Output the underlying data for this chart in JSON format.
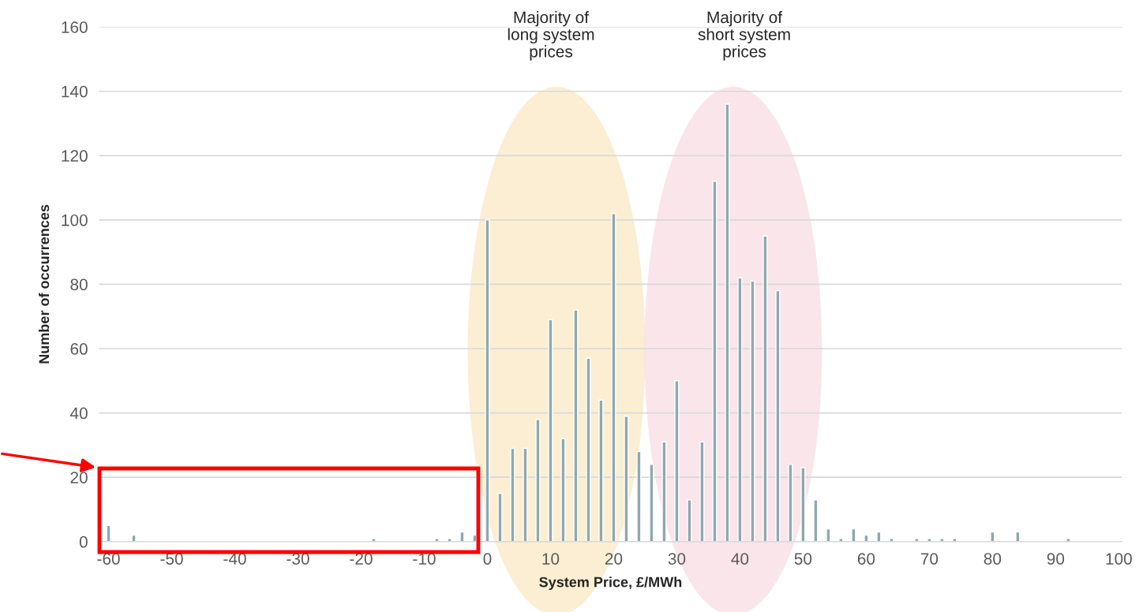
{
  "chart_data": {
    "type": "bar",
    "xlabel": "System Price, £/MWh",
    "ylabel": "Number of occurrences",
    "x": [
      -60,
      -56,
      -18,
      -8,
      -6,
      -4,
      -2,
      0,
      2,
      4,
      6,
      8,
      10,
      12,
      14,
      16,
      18,
      20,
      22,
      24,
      26,
      28,
      30,
      32,
      34,
      36,
      38,
      40,
      42,
      44,
      46,
      48,
      50,
      52,
      54,
      56,
      58,
      60,
      62,
      64,
      68,
      70,
      72,
      74,
      80,
      84,
      92
    ],
    "values": [
      5,
      2,
      1,
      1,
      1,
      3,
      2,
      100,
      15,
      29,
      29,
      38,
      69,
      32,
      72,
      57,
      44,
      102,
      39,
      28,
      24,
      31,
      50,
      13,
      31,
      112,
      136,
      82,
      81,
      95,
      78,
      24,
      23,
      13,
      4,
      1,
      4,
      2,
      3,
      1,
      1,
      1,
      1,
      1,
      3,
      3,
      1
    ],
    "color": "#8fa9ae",
    "xlim": [
      -61.5,
      100.5
    ],
    "xticks": [
      -60,
      -50,
      -40,
      -30,
      -20,
      -10,
      0,
      10,
      20,
      30,
      40,
      50,
      60,
      70,
      80,
      90,
      100
    ],
    "ylim": [
      0,
      160
    ],
    "yticks": [
      0,
      20,
      40,
      60,
      80,
      100,
      120,
      140,
      160
    ],
    "grid": "y",
    "legend": false,
    "annotations": [
      "Majority of\nlong system\nprices",
      "Majority of\nshort system\nprices"
    ]
  }
}
